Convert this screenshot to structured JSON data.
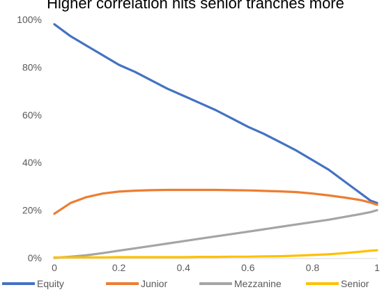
{
  "chart_data": {
    "type": "line",
    "title": "Higher correlation hits senior tranches more",
    "xlabel": "",
    "ylabel": "",
    "xlim": [
      0,
      1
    ],
    "ylim": [
      0,
      100
    ],
    "x_ticks": [
      "0",
      "0.2",
      "0.4",
      "0.6",
      "0.8",
      "1"
    ],
    "y_ticks": [
      "0%",
      "20%",
      "40%",
      "60%",
      "80%",
      "100%"
    ],
    "grid": false,
    "legend_position": "bottom",
    "x": [
      0,
      0.05,
      0.1,
      0.15,
      0.2,
      0.25,
      0.3,
      0.35,
      0.4,
      0.45,
      0.5,
      0.55,
      0.6,
      0.65,
      0.7,
      0.75,
      0.8,
      0.85,
      0.9,
      0.95,
      0.98,
      1.0
    ],
    "series": [
      {
        "name": "Equity",
        "color": "#4472C4",
        "values": [
          98,
          93,
          89,
          85,
          81,
          78,
          74.5,
          71,
          68,
          65,
          62,
          58.5,
          55,
          52,
          48.5,
          45,
          41,
          37,
          32,
          27,
          24,
          23
        ]
      },
      {
        "name": "Junior",
        "color": "#ED7D31",
        "values": [
          18.5,
          23,
          25.5,
          27,
          27.8,
          28.2,
          28.4,
          28.5,
          28.5,
          28.5,
          28.5,
          28.4,
          28.3,
          28.1,
          27.9,
          27.6,
          27,
          26.2,
          25.3,
          24.2,
          23.2,
          22.3
        ]
      },
      {
        "name": "Mezzanine",
        "color": "#A5A5A5",
        "values": [
          0,
          0.5,
          1.1,
          2.0,
          3.0,
          4.0,
          5.0,
          6.0,
          7.0,
          8.0,
          9.0,
          10.0,
          11.0,
          12.0,
          13.0,
          14.0,
          15.0,
          16.0,
          17.2,
          18.4,
          19.2,
          20.0
        ]
      },
      {
        "name": "Senior",
        "color": "#FFC000",
        "values": [
          0.2,
          0.2,
          0.2,
          0.2,
          0.3,
          0.3,
          0.3,
          0.3,
          0.3,
          0.4,
          0.4,
          0.5,
          0.5,
          0.6,
          0.7,
          0.9,
          1.2,
          1.5,
          2.0,
          2.6,
          3.0,
          3.2
        ]
      }
    ]
  }
}
